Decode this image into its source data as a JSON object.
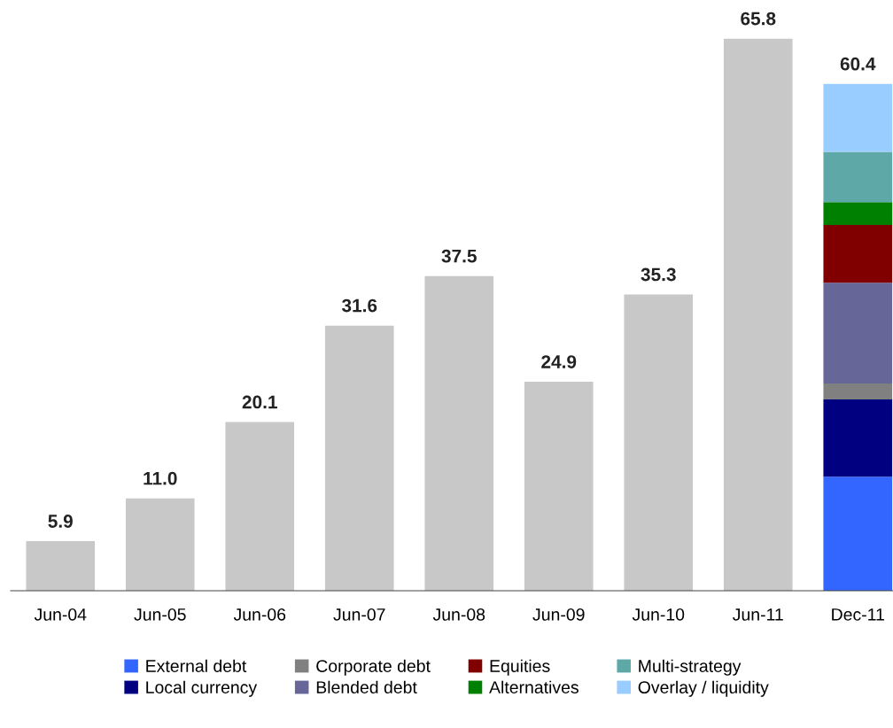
{
  "chart_data": {
    "type": "bar",
    "stacked": true,
    "legend": "bottom",
    "tick_labels": "x",
    "grid": false,
    "categories": [
      "Jun-04",
      "Jun-05",
      "Jun-06",
      "Jun-07",
      "Jun-08",
      "Jun-09",
      "Jun-10",
      "Jun-11",
      "Dec-11"
    ],
    "series": [
      {
        "color": "#c8c8c8",
        "values": [
          5.9,
          11.0,
          20.1,
          31.6,
          37.5,
          24.9,
          35.3,
          65.8,
          null
        ],
        "value_labels": [
          "5.9",
          "11.0",
          "20.1",
          "31.6",
          "37.5",
          "24.9",
          "35.3",
          "65.8",
          null
        ]
      },
      {
        "name": "External debt",
        "color": "#3366ff",
        "values": [
          null,
          null,
          null,
          null,
          null,
          null,
          null,
          null,
          13.6
        ]
      },
      {
        "name": "Local currency",
        "color": "#000080",
        "values": [
          null,
          null,
          null,
          null,
          null,
          null,
          null,
          null,
          9.2
        ]
      },
      {
        "name": "Corporate debt",
        "color": "#808080",
        "values": [
          null,
          null,
          null,
          null,
          null,
          null,
          null,
          null,
          1.9
        ]
      },
      {
        "name": "Blended debt",
        "color": "#666699",
        "values": [
          null,
          null,
          null,
          null,
          null,
          null,
          null,
          null,
          12.0
        ]
      },
      {
        "name": "Equities",
        "color": "#800000",
        "values": [
          null,
          null,
          null,
          null,
          null,
          null,
          null,
          null,
          6.9
        ]
      },
      {
        "name": "Alternatives",
        "color": "#008000",
        "values": [
          null,
          null,
          null,
          null,
          null,
          null,
          null,
          null,
          2.7
        ]
      },
      {
        "name": "Multi-strategy",
        "color": "#5fa8a8",
        "values": [
          null,
          null,
          null,
          null,
          null,
          null,
          null,
          null,
          6.0
        ]
      },
      {
        "name": "Overlay / liquidity",
        "color": "#99ccff",
        "values": [
          null,
          null,
          null,
          null,
          null,
          null,
          null,
          null,
          8.1
        ]
      }
    ],
    "totals": [
      null,
      null,
      null,
      null,
      null,
      null,
      null,
      null,
      "60.4"
    ]
  }
}
